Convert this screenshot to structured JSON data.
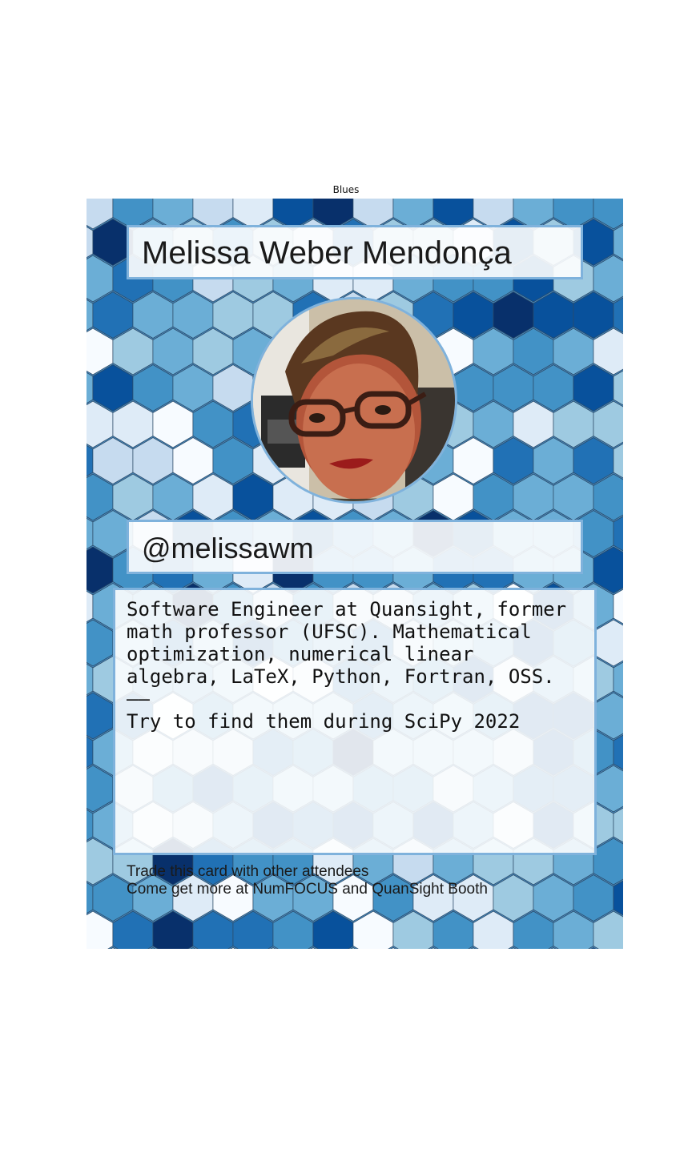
{
  "caption": "Blues",
  "card": {
    "name": "Melissa Weber Mendonça",
    "handle": "@melissawm",
    "bio": "Software Engineer at Quansight, former\nmath professor (UFSC). Mathematical\noptimization, numerical linear\nalgebra, LaTeX, Python, Fortran, OSS.\n——\nTry to find them during SciPy 2022",
    "footer_line1": "Trade this card with other attendees",
    "footer_line2": "Come get more at NumFOCUS and QuanSight Booth",
    "avatar_icon": "profile-photo",
    "palette": [
      "#f7fbff",
      "#deebf7",
      "#c6dbef",
      "#9ecae1",
      "#6baed6",
      "#4292c6",
      "#2171b5",
      "#08519c",
      "#08306b"
    ]
  }
}
